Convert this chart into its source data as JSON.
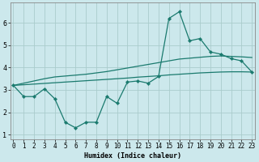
{
  "title": "",
  "xlabel": "Humidex (Indice chaleur)",
  "background_color": "#cce8ec",
  "grid_color": "#aacccc",
  "line_color": "#1a7a6e",
  "x": [
    0,
    1,
    2,
    3,
    4,
    5,
    6,
    7,
    8,
    9,
    10,
    11,
    12,
    13,
    14,
    15,
    16,
    17,
    18,
    19,
    20,
    21,
    22,
    23
  ],
  "y_data": [
    3.2,
    2.7,
    2.7,
    3.05,
    2.6,
    1.55,
    1.3,
    1.55,
    1.55,
    2.7,
    2.4,
    3.35,
    3.4,
    3.3,
    3.6,
    6.2,
    6.5,
    5.2,
    5.3,
    4.7,
    4.6,
    4.4,
    4.3,
    3.8
  ],
  "y_trend1": [
    3.2,
    3.23,
    3.26,
    3.29,
    3.32,
    3.35,
    3.38,
    3.41,
    3.44,
    3.47,
    3.5,
    3.53,
    3.57,
    3.6,
    3.63,
    3.67,
    3.7,
    3.73,
    3.76,
    3.78,
    3.8,
    3.81,
    3.81,
    3.8
  ],
  "y_trend2": [
    3.2,
    3.3,
    3.4,
    3.5,
    3.58,
    3.62,
    3.66,
    3.7,
    3.76,
    3.82,
    3.9,
    3.98,
    4.06,
    4.14,
    4.22,
    4.3,
    4.38,
    4.42,
    4.46,
    4.5,
    4.52,
    4.5,
    4.48,
    4.45
  ],
  "ylim": [
    0.8,
    6.9
  ],
  "xlim": [
    -0.3,
    23.3
  ],
  "yticks": [
    1,
    2,
    3,
    4,
    5,
    6
  ],
  "xticks": [
    0,
    1,
    2,
    3,
    4,
    5,
    6,
    7,
    8,
    9,
    10,
    11,
    12,
    13,
    14,
    15,
    16,
    17,
    18,
    19,
    20,
    21,
    22,
    23
  ],
  "xlabel_fontsize": 6.0,
  "tick_fontsize": 5.5,
  "linewidth": 0.9,
  "markersize": 2.2
}
